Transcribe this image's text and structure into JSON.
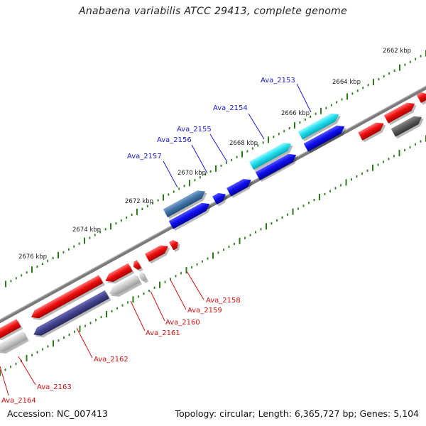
{
  "title": "Anabaena variabilis ATCC 29413, complete genome",
  "accession_label": "Accession: NC_007413",
  "summary_label": "Topology: circular; Length: 6,365,727 bp; Genes: 5,104",
  "scale_labels": [
    "2662 kbp",
    "2664 kbp",
    "2666 kbp",
    "2668 kbp",
    "2670 kbp",
    "2672 kbp",
    "2674 kbp",
    "2676 kbp"
  ],
  "top_genes": [
    "Ava_2153",
    "Ava_2154",
    "Ava_2155",
    "Ava_2156",
    "Ava_2157"
  ],
  "bottom_genes": [
    "Ava_2158",
    "Ava_2159",
    "Ava_2160",
    "Ava_2161",
    "Ava_2162",
    "Ava_2163",
    "Ava_2164"
  ],
  "colors": {
    "backbone": "#808080",
    "tick": "#2a7a1a",
    "cyan": "#22e0ee",
    "blue": "#1010ee",
    "steel_blue": "#3f73a6",
    "red": "#ee1010",
    "light_gray": "#c8c8c8",
    "dark_gray": "#5a5a5a",
    "slate": "#41418a",
    "top_label": "#1a1ad0",
    "bottom_label": "#d01010"
  }
}
